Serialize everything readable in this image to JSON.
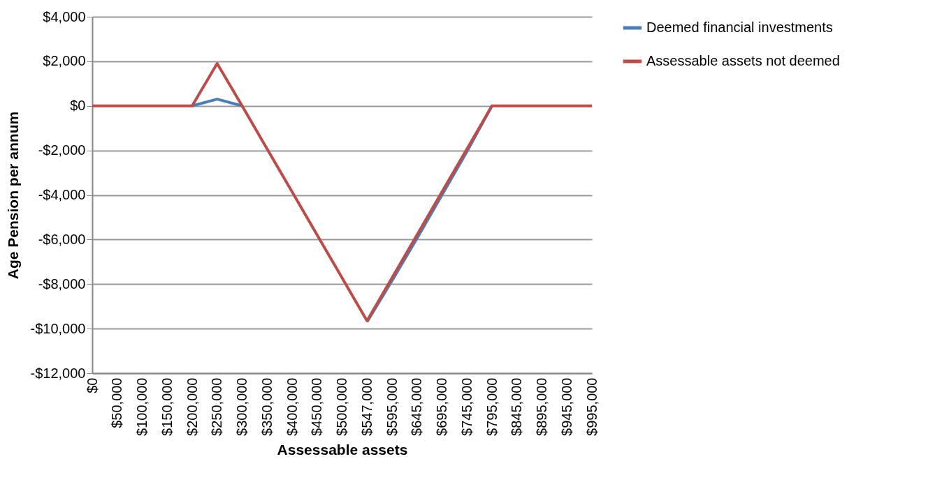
{
  "chart_data": {
    "type": "line",
    "xlabel": "Assessable assets",
    "ylabel": "Age Pension per annum",
    "categories": [
      "$0",
      "$50,000",
      "$100,000",
      "$150,000",
      "$200,000",
      "$250,000",
      "$300,000",
      "$350,000",
      "$400,000",
      "$450,000",
      "$500,000",
      "$547,000",
      "$595,000",
      "$645,000",
      "$695,000",
      "$745,000",
      "$795,000",
      "$845,000",
      "$895,000",
      "$945,000",
      "$995,000"
    ],
    "series": [
      {
        "name": "Deemed financial investments",
        "color": "#4a7ebb",
        "values": [
          null,
          null,
          null,
          null,
          0,
          300,
          0,
          null,
          null,
          null,
          null,
          -9700,
          -7850,
          -5950,
          -4000,
          -2050,
          0,
          null,
          null,
          null,
          null
        ]
      },
      {
        "name": "Assessable assets not deemed",
        "color": "#be4b48",
        "values": [
          0,
          0,
          0,
          0,
          0,
          1900,
          0,
          -1930,
          -3860,
          -5790,
          -7720,
          -9650,
          -7720,
          -5790,
          -3860,
          -1930,
          0,
          0,
          0,
          0,
          0
        ]
      }
    ],
    "ylim": [
      -12000,
      4000
    ],
    "yticks": [
      {
        "value": -12000,
        "label": "-$12,000"
      },
      {
        "value": -10000,
        "label": "-$10,000"
      },
      {
        "value": -8000,
        "label": "-$8,000"
      },
      {
        "value": -6000,
        "label": "-$6,000"
      },
      {
        "value": -4000,
        "label": "-$4,000"
      },
      {
        "value": -2000,
        "label": "-$2,000"
      },
      {
        "value": 0,
        "label": "$0"
      },
      {
        "value": 2000,
        "label": "$2,000"
      },
      {
        "value": 4000,
        "label": "$4,000"
      }
    ],
    "grid": "y",
    "legend": "right"
  }
}
